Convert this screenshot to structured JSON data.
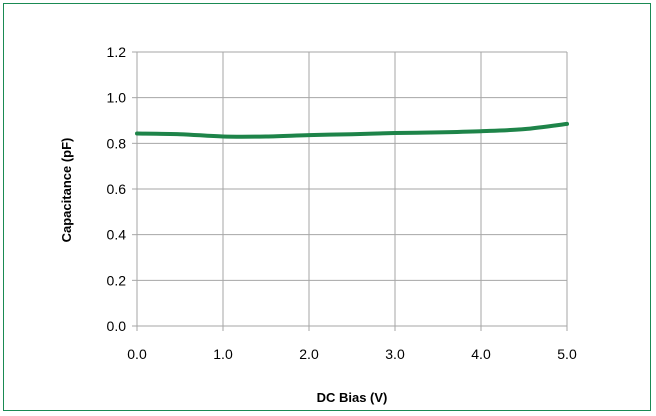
{
  "chart_data": {
    "type": "line",
    "title": "",
    "xlabel": "DC Bias (V)",
    "ylabel": "Capacitance (pF)",
    "xlim": [
      0.0,
      5.0
    ],
    "ylim": [
      0.0,
      1.2
    ],
    "x_ticks": [
      "0.0",
      "1.0",
      "2.0",
      "3.0",
      "4.0",
      "5.0"
    ],
    "y_ticks": [
      "0.0",
      "0.2",
      "0.4",
      "0.6",
      "0.8",
      "1.0",
      "1.2"
    ],
    "grid": true,
    "legend": "none",
    "series": [
      {
        "color": "#1e8449",
        "x": [
          0.0,
          0.5,
          1.0,
          1.5,
          2.0,
          2.5,
          3.0,
          3.5,
          4.0,
          4.5,
          5.0
        ],
        "y": [
          0.843,
          0.84,
          0.83,
          0.83,
          0.836,
          0.84,
          0.845,
          0.848,
          0.853,
          0.862,
          0.885
        ]
      }
    ]
  }
}
